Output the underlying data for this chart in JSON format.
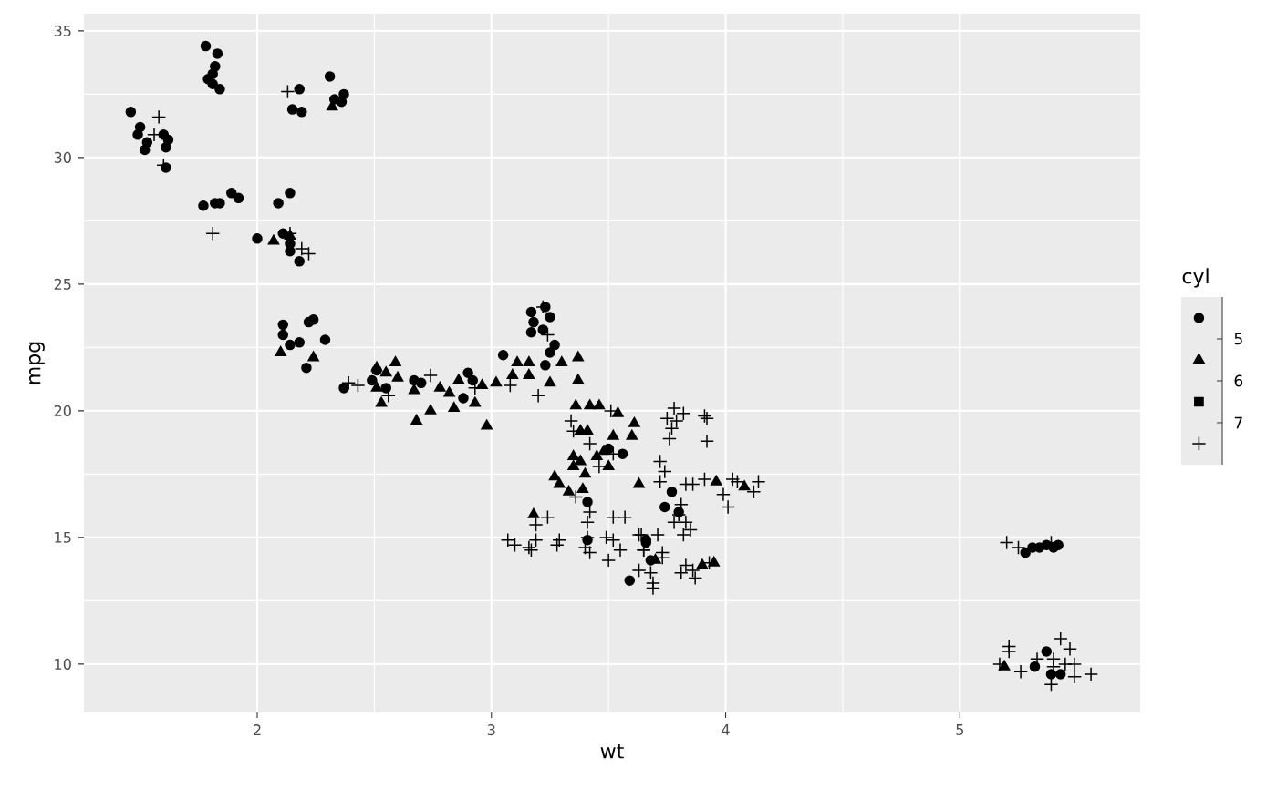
{
  "chart_data": {
    "type": "scatter",
    "xlabel": "wt",
    "ylabel": "mpg",
    "legend_title": "cyl",
    "annotations": [
      "5",
      "6",
      "7"
    ],
    "xlim": [
      1.26,
      5.77
    ],
    "ylim": [
      8.09,
      35.68
    ],
    "xticks": [
      2,
      3,
      4,
      5
    ],
    "yticks": [
      10,
      15,
      20,
      25,
      30,
      35
    ],
    "grid": true,
    "series": [
      {
        "marker": "circle",
        "color": "#000000",
        "x": [
          1.78,
          1.83,
          1.82,
          1.81,
          1.79,
          1.81,
          1.84,
          2.18,
          2.31,
          2.37,
          2.36,
          2.33,
          2.15,
          2.19,
          1.46,
          1.5,
          1.49,
          1.53,
          1.52,
          1.6,
          1.62,
          1.61,
          1.61,
          1.77,
          1.82,
          1.84,
          1.89,
          1.92,
          2.09,
          2.14,
          2.0,
          2.11,
          2.14,
          2.14,
          2.18,
          2.11,
          2.11,
          2.14,
          2.18,
          2.22,
          2.24,
          2.29,
          2.21,
          2.37,
          2.49,
          2.51,
          3.05,
          2.9,
          2.92,
          2.88,
          2.67,
          2.7,
          2.55,
          3.17,
          3.23,
          3.25,
          3.18,
          3.17,
          3.22,
          3.27,
          3.25,
          3.23,
          3.5,
          3.56,
          3.41,
          3.41,
          3.66,
          3.59,
          3.77,
          3.74,
          3.8,
          3.66,
          3.68,
          5.28,
          5.31,
          5.34,
          5.37,
          5.4,
          5.42,
          5.32,
          5.37,
          5.39,
          5.43
        ],
        "values": [
          34.4,
          34.1,
          33.6,
          33.3,
          33.1,
          32.9,
          32.7,
          32.7,
          33.2,
          32.5,
          32.2,
          32.3,
          31.9,
          31.8,
          31.8,
          31.2,
          30.9,
          30.6,
          30.3,
          30.9,
          30.7,
          30.4,
          29.6,
          28.1,
          28.2,
          28.2,
          28.6,
          28.4,
          28.2,
          28.6,
          26.8,
          27.0,
          26.3,
          26.6,
          25.9,
          23.4,
          23.0,
          22.6,
          22.7,
          23.5,
          23.6,
          22.8,
          21.7,
          20.9,
          21.2,
          21.6,
          22.2,
          21.5,
          21.2,
          20.5,
          21.2,
          21.1,
          20.9,
          23.9,
          24.1,
          23.7,
          23.5,
          23.1,
          23.2,
          22.6,
          22.3,
          21.8,
          18.5,
          18.3,
          16.4,
          14.9,
          14.8,
          13.3,
          16.8,
          16.2,
          16.0,
          14.9,
          14.1,
          14.4,
          14.6,
          14.6,
          14.7,
          14.6,
          14.7,
          9.9,
          10.5,
          9.6,
          9.6
        ]
      },
      {
        "marker": "triangle",
        "color": "#000000",
        "x": [
          2.32,
          2.07,
          2.14,
          2.1,
          2.24,
          2.51,
          2.59,
          2.55,
          2.6,
          2.51,
          2.53,
          2.67,
          2.78,
          2.82,
          2.84,
          2.93,
          2.86,
          2.96,
          3.02,
          2.74,
          2.68,
          2.98,
          3.09,
          3.11,
          3.16,
          3.3,
          3.37,
          3.16,
          3.25,
          3.37,
          3.36,
          3.42,
          3.46,
          3.54,
          3.61,
          3.6,
          3.38,
          3.41,
          3.52,
          3.35,
          3.38,
          3.35,
          3.45,
          3.48,
          3.5,
          3.27,
          3.29,
          3.33,
          3.39,
          3.4,
          3.63,
          3.18,
          3.96,
          4.08,
          3.9,
          3.95,
          3.7,
          5.19
        ],
        "values": [
          32.0,
          26.7,
          26.9,
          22.3,
          22.1,
          21.7,
          21.9,
          21.5,
          21.3,
          20.9,
          20.3,
          20.8,
          20.9,
          20.7,
          20.1,
          20.3,
          21.2,
          21.0,
          21.1,
          20.0,
          19.6,
          19.4,
          21.4,
          21.9,
          21.9,
          21.9,
          22.1,
          21.4,
          21.1,
          21.2,
          20.2,
          20.2,
          20.2,
          19.9,
          19.5,
          19.0,
          19.2,
          19.2,
          19.0,
          18.2,
          18.0,
          17.8,
          18.2,
          18.4,
          17.8,
          17.4,
          17.1,
          16.8,
          16.9,
          17.5,
          17.1,
          15.9,
          17.2,
          17.0,
          13.9,
          14.0,
          14.1,
          9.9
        ]
      },
      {
        "marker": "square",
        "color": "#000000"
      },
      {
        "marker": "cross",
        "color": "#000000",
        "x": [
          1.58,
          1.56,
          1.6,
          2.13,
          1.81,
          2.14,
          2.19,
          2.22,
          2.39,
          2.43,
          2.74,
          2.56,
          2.93,
          3.08,
          3.22,
          3.24,
          3.2,
          3.51,
          3.34,
          3.35,
          3.42,
          3.46,
          3.52,
          3.36,
          3.24,
          3.19,
          3.42,
          3.41,
          3.52,
          3.57,
          3.07,
          3.1,
          3.16,
          3.19,
          3.17,
          3.28,
          3.29,
          3.41,
          3.4,
          3.42,
          3.49,
          3.52,
          3.5,
          3.55,
          3.63,
          3.65,
          3.63,
          3.78,
          3.82,
          3.75,
          3.79,
          3.77,
          3.76,
          3.91,
          3.92,
          3.92,
          3.72,
          3.74,
          3.72,
          3.83,
          3.86,
          3.91,
          4.03,
          4.05,
          4.14,
          4.12,
          3.99,
          4.01,
          3.81,
          3.8,
          3.78,
          3.83,
          3.82,
          3.85,
          3.71,
          3.64,
          3.65,
          3.73,
          3.73,
          3.83,
          3.86,
          3.81,
          3.87,
          3.68,
          3.69,
          3.69,
          3.93,
          5.2,
          5.25,
          5.39,
          5.21,
          5.21,
          5.17,
          5.26,
          5.33,
          5.4,
          5.4,
          5.43,
          5.47,
          5.45,
          5.49,
          5.49,
          5.39,
          5.56
        ],
        "values": [
          31.6,
          30.9,
          29.7,
          32.6,
          27.0,
          27.0,
          26.4,
          26.2,
          21.1,
          21.0,
          21.4,
          20.6,
          20.9,
          21.0,
          24.1,
          23.0,
          20.6,
          20.0,
          19.6,
          19.2,
          18.7,
          17.8,
          18.3,
          16.6,
          15.8,
          15.5,
          16.0,
          15.6,
          15.8,
          15.8,
          14.9,
          14.7,
          14.6,
          14.9,
          14.5,
          14.7,
          14.9,
          15.0,
          14.6,
          14.4,
          15.0,
          14.9,
          14.1,
          14.5,
          15.1,
          14.5,
          13.7,
          20.1,
          19.9,
          19.7,
          19.6,
          19.3,
          18.9,
          19.8,
          19.7,
          18.8,
          18.0,
          17.6,
          17.2,
          17.1,
          17.1,
          17.3,
          17.3,
          17.2,
          17.2,
          16.8,
          16.7,
          16.2,
          16.3,
          15.9,
          15.6,
          15.6,
          15.1,
          15.3,
          15.1,
          15.1,
          14.5,
          14.4,
          14.2,
          13.9,
          13.7,
          13.6,
          13.4,
          13.6,
          13.2,
          13.0,
          14.0,
          14.8,
          14.6,
          14.8,
          10.7,
          10.5,
          10.0,
          9.7,
          10.2,
          10.2,
          9.9,
          11.0,
          10.6,
          10.0,
          10.0,
          9.5,
          9.2,
          9.6
        ]
      }
    ]
  }
}
